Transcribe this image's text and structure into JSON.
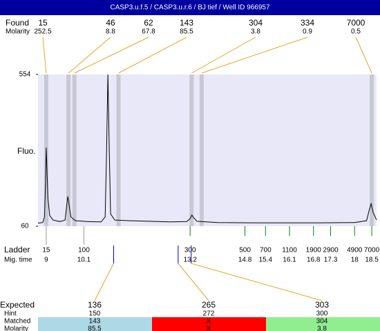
{
  "title": "CASP3.u.f.5 / CASP3.u.r.6 / BJ tief / Well ID 966957",
  "found": {
    "label": "Found",
    "molarity_label": "Molarity",
    "sizes": [
      15,
      46,
      62,
      143,
      304,
      334,
      7000
    ],
    "molarity": [
      252.5,
      8.8,
      67.8,
      85.5,
      3.8,
      0.9,
      0.5
    ]
  },
  "chart_data": {
    "type": "line",
    "y_label": "Fluo.",
    "color": "#000000",
    "ylim": [
      60,
      554
    ],
    "yticks": [
      60,
      554
    ],
    "xlim": [
      8.76,
      18.64
    ],
    "x": [
      8.76,
      8.9,
      8.95,
      8.98,
      9.0,
      9.02,
      9.05,
      9.1,
      9.2,
      9.4,
      9.55,
      9.6,
      9.63,
      9.66,
      9.72,
      9.85,
      10.2,
      10.6,
      10.72,
      10.76,
      10.8,
      10.84,
      10.88,
      11.0,
      11.4,
      12.0,
      12.6,
      13.1,
      13.2,
      13.25,
      13.3,
      13.4,
      14.0,
      15.0,
      16.0,
      17.0,
      18.0,
      18.35,
      18.42,
      18.48,
      18.54,
      18.64
    ],
    "values": [
      70,
      72,
      90,
      200,
      316,
      250,
      150,
      95,
      80,
      75,
      80,
      130,
      157,
      135,
      90,
      78,
      75,
      74,
      90,
      300,
      554,
      300,
      100,
      80,
      78,
      76,
      74,
      75,
      85,
      96,
      88,
      76,
      72,
      71,
      71,
      71,
      72,
      78,
      110,
      133,
      105,
      80
    ]
  },
  "ladder": {
    "label": "Ladder",
    "time_label": "Mig. time",
    "sizes": [
      15,
      100,
      300,
      500,
      700,
      1100,
      1900,
      2900,
      4900,
      7000
    ],
    "times": [
      9,
      10.1,
      13.2,
      14.8,
      15.4,
      16.1,
      16.8,
      17.3,
      18,
      18.5
    ]
  },
  "expected": {
    "label": "Expected",
    "hint_label": "Hint",
    "matched_label": "Matched",
    "molarity_label": "Molarity",
    "sizes": [
      136,
      265,
      303
    ],
    "hint": [
      150,
      272,
      300
    ],
    "matched": [
      "143",
      "X",
      "304"
    ],
    "molarity": [
      "85.5",
      "X",
      "3.8"
    ]
  }
}
